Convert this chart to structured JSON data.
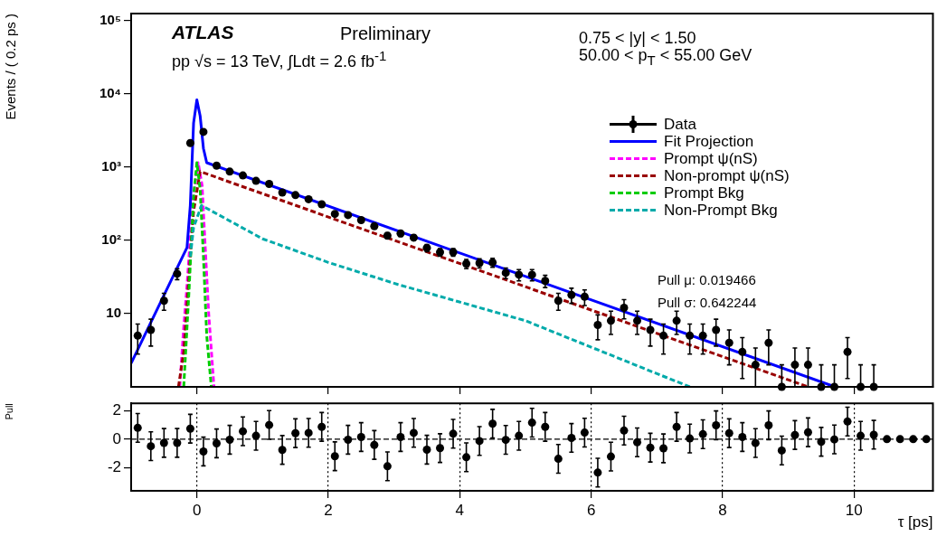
{
  "chart_data": [
    {
      "type": "scatter",
      "ylabel": "Events / ( 0.2 ps )",
      "xlim": [
        -1,
        11.2
      ],
      "xticks": [
        0,
        2,
        4,
        6,
        8,
        10
      ],
      "ylim": [
        1,
        125000
      ],
      "log": "y",
      "tick_labels": "y",
      "legend": "top right",
      "yticks": [
        {
          "value": 10,
          "label": "10"
        },
        {
          "value": 100,
          "label": "10²"
        },
        {
          "value": 1000,
          "label": "10³"
        },
        {
          "value": 10000,
          "label": "10⁴"
        },
        {
          "value": 100000,
          "label": "10⁵"
        }
      ],
      "annotations": [
        "ATLAS",
        "Preliminary",
        "pp √s = 13 TeV, ∫Ldt = 2.6 fb$^{-1}$",
        "0.75 < |y| < 1.50",
        "50.00 < p$_{T}$ < 55.00 GeV",
        "Pull μ: 0.019466",
        "Pull σ: 0.642244"
      ],
      "series": [
        {
          "name": "Data",
          "type": "scatter",
          "marker": "circle",
          "color": "#000000",
          "x": [
            -0.9,
            -0.7,
            -0.5,
            -0.3,
            -0.1,
            0.1,
            0.3,
            0.5,
            0.7,
            0.9,
            1.1,
            1.3,
            1.5,
            1.7,
            1.9,
            2.1,
            2.3,
            2.5,
            2.7,
            2.9,
            3.1,
            3.3,
            3.5,
            3.7,
            3.9,
            4.1,
            4.3,
            4.5,
            4.7,
            4.9,
            5.1,
            5.3,
            5.5,
            5.7,
            5.9,
            6.1,
            6.3,
            6.5,
            6.7,
            6.9,
            7.1,
            7.3,
            7.5,
            7.7,
            7.9,
            8.1,
            8.3,
            8.5,
            8.7,
            8.9,
            9.1,
            9.3,
            9.5,
            9.7,
            9.9,
            10.1,
            10.3
          ],
          "values": [
            5,
            6,
            15,
            35,
            2130,
            3030,
            1050,
            870,
            770,
            650,
            590,
            450,
            415,
            365,
            311,
            230,
            222,
            189,
            156,
            116,
            124,
            109,
            79,
            69,
            69,
            48,
            49,
            50,
            36,
            34,
            34,
            28,
            15,
            18,
            17,
            7,
            8,
            12,
            8,
            6,
            5,
            8,
            5,
            5,
            6,
            4,
            3,
            2,
            4,
            1,
            2,
            2,
            1,
            1,
            3,
            1,
            1
          ],
          "errors": [
            2.2,
            2.4,
            3.9,
            5.9,
            null,
            null,
            null,
            null,
            null,
            null,
            null,
            null,
            null,
            null,
            null,
            null,
            null,
            null,
            12,
            11,
            11,
            10,
            9,
            8,
            8,
            7,
            7,
            7,
            6,
            6,
            6,
            5.3,
            3.9,
            4.2,
            4.1,
            2.6,
            2.8,
            3.5,
            2.8,
            2.4,
            2.2,
            2.8,
            2.2,
            2.2,
            2.4,
            2,
            1.7,
            [
              1,
              3.4
            ],
            2,
            [
              1,
              2
            ],
            [
              1,
              3.4
            ],
            [
              1,
              3.4
            ],
            [
              1,
              2
            ],
            [
              1,
              2
            ],
            1.7,
            [
              1,
              2
            ],
            [
              1,
              2
            ]
          ]
        },
        {
          "name": "Fit Projection",
          "type": "line",
          "line_style": "solid",
          "color": "#0000ff",
          "x": [
            -1,
            -0.3,
            -0.15,
            -0.1,
            -0.05,
            0,
            0.05,
            0.1,
            0.15,
            9.71
          ],
          "values": [
            2.1,
            42,
            80,
            300,
            4000,
            8300,
            5000,
            1800,
            1150,
            1
          ]
        },
        {
          "name": "Prompt ψ(nS)",
          "type": "line",
          "line_style": "dashed",
          "color": "#ff00ff",
          "x": [
            -0.26,
            -0.2,
            -0.15,
            -0.1,
            -0.05,
            0.02,
            0.08,
            0.12,
            0.18,
            0.26
          ],
          "values": [
            1,
            6.5,
            24,
            107,
            430,
            1150,
            560,
            107,
            10,
            1
          ]
        },
        {
          "name": "Non-prompt ψ(nS)",
          "type": "line",
          "line_style": "dashed",
          "color": "#990000",
          "x": [
            -0.28,
            -0.2,
            -0.1,
            -0.05,
            0.05,
            9.3
          ],
          "values": [
            1,
            3,
            60,
            250,
            870,
            1
          ]
        },
        {
          "name": "Prompt Bkg",
          "type": "line",
          "line_style": "dashed",
          "color": "#00cc00",
          "x": [
            -0.2,
            -0.12,
            -0.05,
            0,
            0.05,
            0.1,
            0.15,
            0.22
          ],
          "values": [
            1,
            20,
            400,
            1150,
            500,
            60,
            5,
            1
          ]
        },
        {
          "name": "Non-Prompt Bkg",
          "type": "line",
          "line_style": "dashed",
          "color": "#00aaaa",
          "x": [
            -0.1,
            -0.05,
            0.07,
            1,
            2,
            3.06,
            5,
            7.5
          ],
          "values": [
            60,
            150,
            300,
            105,
            50,
            25,
            8,
            1
          ]
        }
      ]
    },
    {
      "type": "scatter",
      "xlabel": "τ [ps]",
      "ylabel": "Pull",
      "xlim": [
        -1,
        11.2
      ],
      "xticks": [
        0,
        2,
        4,
        6,
        8,
        10
      ],
      "ylim": [
        -3.6,
        2.5
      ],
      "yticks": [
        -2,
        0,
        2
      ],
      "grid": "x",
      "marker": "circle",
      "color": "#000000",
      "ref_lines": [
        {
          "axis": "y",
          "value": 0,
          "line_style": "dashed"
        }
      ],
      "x": [
        -0.9,
        -0.7,
        -0.5,
        -0.3,
        -0.1,
        0.1,
        0.3,
        0.5,
        0.7,
        0.9,
        1.1,
        1.3,
        1.5,
        1.7,
        1.9,
        2.1,
        2.3,
        2.5,
        2.7,
        2.9,
        3.1,
        3.3,
        3.5,
        3.7,
        3.9,
        4.1,
        4.3,
        4.5,
        4.7,
        4.9,
        5.1,
        5.3,
        5.5,
        5.7,
        5.9,
        6.1,
        6.3,
        6.5,
        6.7,
        6.9,
        7.1,
        7.3,
        7.5,
        7.7,
        7.9,
        8.1,
        8.3,
        8.5,
        8.7,
        8.9,
        9.1,
        9.3,
        9.5,
        9.7,
        9.9,
        10.1,
        10.3,
        10.5,
        10.7,
        10.9,
        11.1
      ],
      "values": [
        0.79,
        -0.49,
        -0.26,
        -0.26,
        0.73,
        -0.86,
        -0.29,
        -0.04,
        0.55,
        0.24,
        0.99,
        -0.75,
        0.42,
        0.44,
        0.86,
        -1.19,
        -0.04,
        0.15,
        -0.4,
        -1.89,
        0.15,
        0.44,
        -0.73,
        -0.62,
        0.38,
        -1.26,
        -0.13,
        1.08,
        -0.05,
        0.24,
        1.15,
        0.86,
        -1.37,
        0.09,
        0.46,
        -2.33,
        -1.21,
        0.6,
        -0.22,
        -0.59,
        -0.64,
        0.86,
        0.05,
        0.35,
        0.97,
        0.42,
        0.15,
        -0.27,
        0.97,
        -0.79,
        0.29,
        0.48,
        -0.18,
        -0.02,
        1.23,
        0.24,
        0.31,
        0,
        0,
        0,
        0
      ],
      "errors": [
        1,
        1,
        1,
        1,
        1,
        1,
        1,
        1,
        1,
        1,
        1,
        1,
        1,
        1,
        1,
        1,
        1,
        1,
        1,
        1,
        1,
        1,
        1,
        1,
        1,
        1,
        1,
        1,
        1,
        1,
        1,
        1,
        1,
        1,
        1,
        1,
        1,
        1,
        1,
        1,
        1,
        1,
        1,
        1,
        1,
        1,
        1,
        1,
        1,
        1,
        1,
        1,
        1,
        1,
        1,
        1,
        1,
        null,
        null,
        null,
        null
      ]
    }
  ]
}
